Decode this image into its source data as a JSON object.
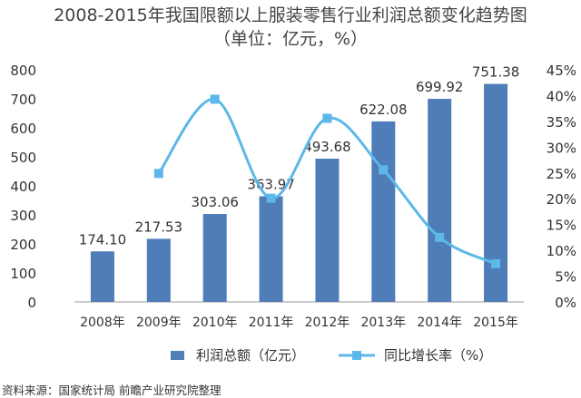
{
  "chart_data": {
    "type": "bar",
    "title": "2008-2015年我国限额以上服装零售行业利润总额变化趋势图",
    "subtitle": "（单位：亿元，%）",
    "categories": [
      "2008年",
      "2009年",
      "2010年",
      "2011年",
      "2012年",
      "2013年",
      "2014年",
      "2015年"
    ],
    "series": [
      {
        "name": "利润总额（亿元）",
        "type": "bar",
        "axis": "left",
        "color": "#4F7DB8",
        "values": [
          174.1,
          217.53,
          303.06,
          363.97,
          493.68,
          622.08,
          699.92,
          751.38
        ],
        "labels": [
          "174.10",
          "217.53",
          "303.06",
          "363.97",
          "493.68",
          "622.08",
          "699.92",
          "751.38"
        ]
      },
      {
        "name": "同比增长率（%）",
        "type": "line",
        "axis": "right",
        "color": "#5BB8E8",
        "smooth": true,
        "values": [
          null,
          24.9,
          39.3,
          20.1,
          35.6,
          25.6,
          12.5,
          7.4
        ]
      }
    ],
    "ylim_left": [
      0,
      800
    ],
    "yticks_left": [
      "0",
      "100",
      "200",
      "300",
      "400",
      "500",
      "600",
      "700",
      "800"
    ],
    "ylim_right": [
      0,
      45
    ],
    "yticks_right": [
      "0%",
      "5%",
      "10%",
      "15%",
      "20%",
      "25%",
      "30%",
      "35%",
      "40%",
      "45%"
    ],
    "grid": false,
    "legend_position": "bottom"
  },
  "source": "资料来源：国家统计局 前瞻产业研究院整理"
}
